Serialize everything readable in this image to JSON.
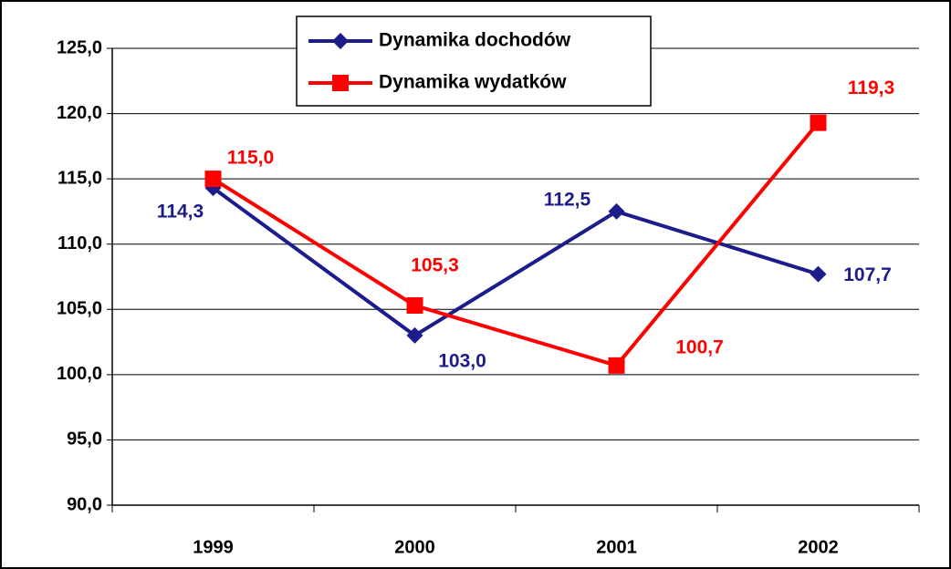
{
  "chart_data": {
    "type": "line",
    "categories": [
      "1999",
      "2000",
      "2001",
      "2002"
    ],
    "series": [
      {
        "name": "Dynamika dochodów",
        "color": "#1c1c8a",
        "values": [
          114.3,
          103.0,
          112.5,
          107.7
        ],
        "value_labels": [
          "114,3",
          "103,0",
          "112,5",
          "107,7"
        ]
      },
      {
        "name": "Dynamika wydatków",
        "color": "#ff0000",
        "values": [
          115.0,
          105.3,
          100.7,
          119.3
        ],
        "value_labels": [
          "115,0",
          "105,3",
          "100,7",
          "119,3"
        ]
      }
    ],
    "ylim": [
      90,
      125
    ],
    "yticks": [
      {
        "value": 90,
        "label": "90,0"
      },
      {
        "value": 95,
        "label": "95,0"
      },
      {
        "value": 100,
        "label": "100,0"
      },
      {
        "value": 105,
        "label": "105,0"
      },
      {
        "value": 110,
        "label": "110,0"
      },
      {
        "value": 115,
        "label": "115,0"
      },
      {
        "value": 120,
        "label": "120,0"
      },
      {
        "value": 125,
        "label": "125,0"
      }
    ],
    "grid": true
  }
}
